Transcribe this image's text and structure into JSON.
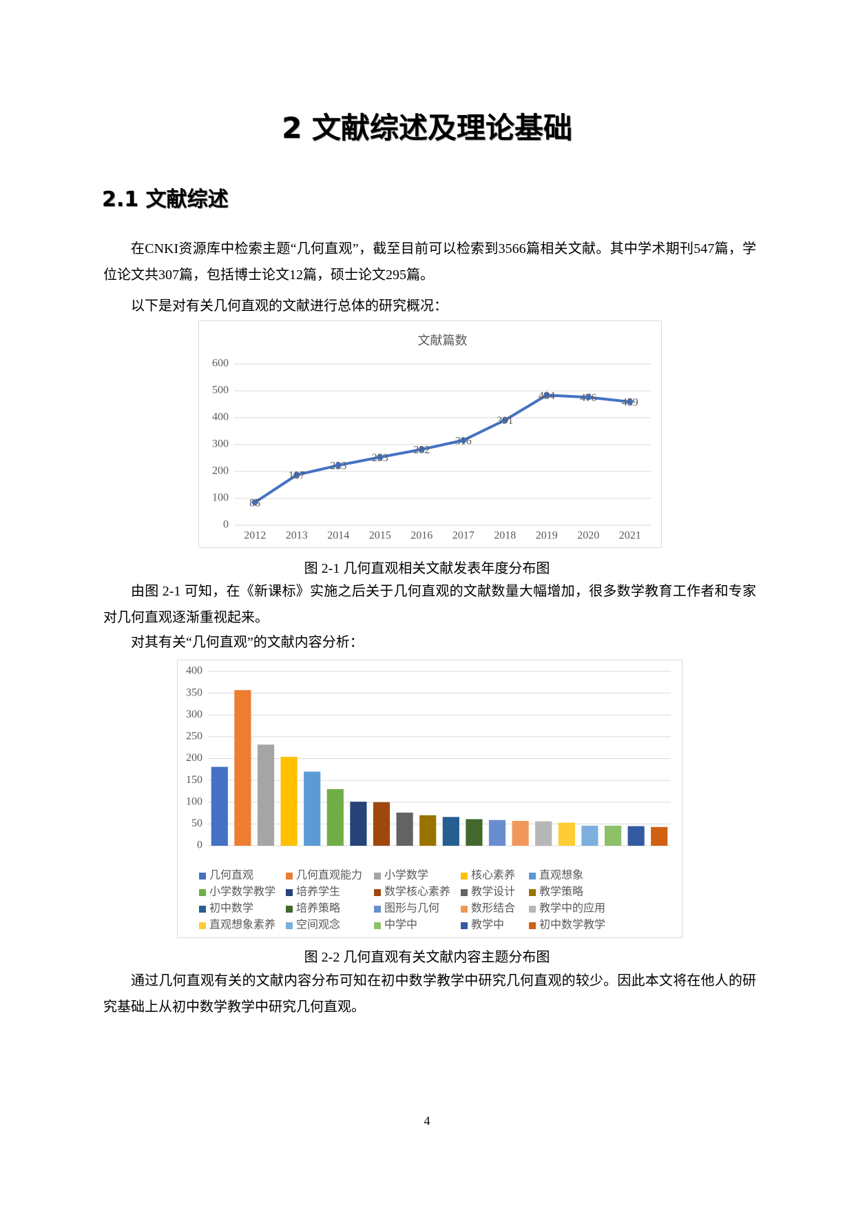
{
  "document": {
    "chapter_title": "2 文献综述及理论基础",
    "section_title": "2.1 文献综述",
    "paragraphs": [
      "在CNKI资源库中检索主题“几何直观”，截至目前可以检索到3566篇相关文献。其中学术期刊547篇，学位论文共307篇，包括博士论文12篇，硕士论文295篇。",
      "以下是对有关几何直观的文献进行总体的研究概况：",
      "由图 2-1 可知，在《新课标》实施之后关于几何直观的文献数量大幅增加，很多数学教育工作者和专家对几何直观逐渐重视起来。",
      "对其有关“几何直观”的文献内容分析：",
      "通过几何直观有关的文献内容分布可知在初中数学教学中研究几何直观的较少。因此本文将在他人的研究基础上从初中数学教学中研究几何直观。"
    ],
    "captions": [
      "图 2-1 几何直观相关文献发表年度分布图",
      "图 2-2  几何直观有关文献内容主题分布图"
    ],
    "page_number": "4"
  },
  "chart_data": [
    {
      "type": "line",
      "title": "文献篇数",
      "categories": [
        "2012",
        "2013",
        "2014",
        "2015",
        "2016",
        "2017",
        "2018",
        "2019",
        "2020",
        "2021"
      ],
      "values": [
        85,
        187,
        223,
        253,
        282,
        316,
        391,
        484,
        476,
        459
      ],
      "color": "#4472c4",
      "ylim": [
        0,
        600
      ],
      "yticks": [
        0,
        100,
        200,
        300,
        400,
        500,
        600
      ],
      "grid": true,
      "data_labels": true
    },
    {
      "type": "bar",
      "categories": [
        "几何直观",
        "几何直观能力",
        "小学数学",
        "核心素养",
        "直观想象",
        "小学数学教学",
        "培养学生",
        "数学核心素养",
        "教学设计",
        "教学策略",
        "初中数学",
        "培养策略",
        "图形与几何",
        "数形结合",
        "教学中的应用",
        "直观想象素养",
        "空间观念",
        "中学中",
        "教学中",
        "初中数学教学"
      ],
      "values": [
        181,
        357,
        232,
        204,
        170,
        130,
        101,
        100,
        76,
        70,
        66,
        61,
        59,
        57,
        56,
        53,
        46,
        46,
        45,
        43
      ],
      "colors": [
        "#4472c4",
        "#ed7d31",
        "#a5a5a5",
        "#ffc000",
        "#5b9bd5",
        "#70ad47",
        "#264478",
        "#9e480e",
        "#636363",
        "#997300",
        "#255e91",
        "#43682b",
        "#698ed0",
        "#f1975a",
        "#b7b7b7",
        "#ffcd33",
        "#7cafdd",
        "#8cc168",
        "#335aa1",
        "#d26012"
      ],
      "ylim": [
        0,
        400
      ],
      "yticks": [
        0,
        50,
        100,
        150,
        200,
        250,
        300,
        350,
        400
      ],
      "grid": true,
      "legend": "bottom"
    }
  ]
}
